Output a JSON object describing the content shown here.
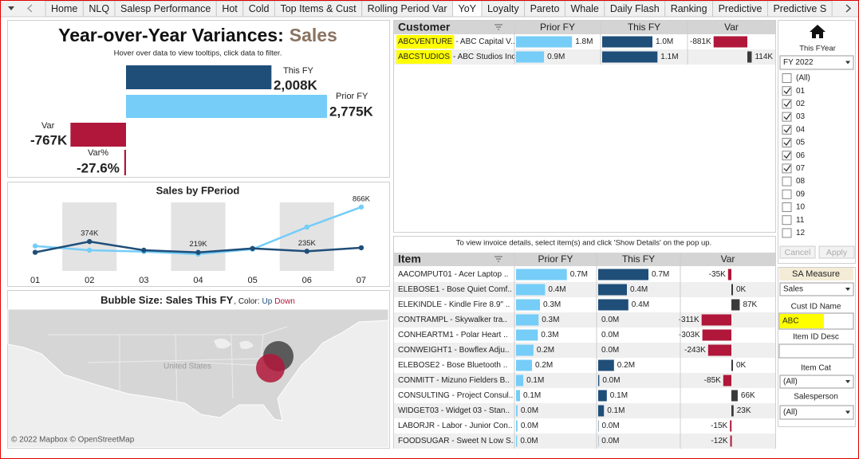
{
  "tabs": {
    "items": [
      "Home",
      "NLQ",
      "Salesp Performance",
      "Hot",
      "Cold",
      "Top Items & Cust",
      "Rolling Period Var",
      "YoY",
      "Loyalty",
      "Pareto",
      "Whale",
      "Daily Flash",
      "Ranking",
      "Predictive",
      "Predictive S"
    ],
    "active": 7
  },
  "kpi": {
    "title": "Year-over-Year Variances:",
    "title_accent": "Sales",
    "subtitle": "Hover over data to view tooltips, click data to filter.",
    "measures": [
      {
        "name": "This FY",
        "value": 2008,
        "value_label": "2,008K",
        "color": "#1f4e79"
      },
      {
        "name": "Prior FY",
        "value": 2775,
        "value_label": "2,775K",
        "color": "#75cdf8"
      },
      {
        "name": "Var",
        "value": -767,
        "value_label": "-767K",
        "color": "#b0173a"
      },
      {
        "name": "Var%",
        "value": -27.6,
        "value_label": "-27.6%",
        "color": "#b0173a"
      }
    ]
  },
  "chart_data": {
    "type": "line",
    "title": "Sales by FPeriod",
    "categories": [
      "01",
      "02",
      "03",
      "04",
      "05",
      "06",
      "07"
    ],
    "ylim": [
      0,
      950
    ],
    "band_shading": true,
    "series": [
      {
        "color": "#75cdf8",
        "values": [
          310,
          250,
          230,
          195,
          265,
          580,
          866
        ],
        "value_labels": [
          null,
          null,
          null,
          null,
          null,
          null,
          "866K"
        ]
      },
      {
        "color": "#1f4e79",
        "values": [
          220,
          374,
          250,
          219,
          275,
          235,
          285
        ],
        "value_labels": [
          null,
          "374K",
          null,
          "219K",
          null,
          "235K",
          null
        ]
      }
    ]
  },
  "map": {
    "title": "Bubble Size: Sales This FY",
    "color_caption": ", Color:",
    "color_up": "Up",
    "color_down": "Down",
    "place_label": "United States",
    "attribution": "© 2022 Mapbox © OpenStreetMap"
  },
  "customer_table": {
    "columns": [
      "Customer",
      "Prior FY",
      "This FY",
      "Var"
    ],
    "rows": [
      {
        "code": "ABCVENTURE",
        "name": "- ABC Capital V..",
        "prior": 1800,
        "prior_label": "1.8M",
        "this": 1000,
        "this_label": "1.0M",
        "var": -881,
        "var_label": "-881K"
      },
      {
        "code": "ABCSTUDIOS",
        "name": "- ABC Studios Inc",
        "prior": 900,
        "prior_label": "0.9M",
        "this": 1100,
        "this_label": "1.1M",
        "var": 114,
        "var_label": "114K"
      }
    ]
  },
  "item_table": {
    "note": "To view invoice details, select item(s) and click 'Show Details' on the pop up.",
    "columns": [
      "Item",
      "Prior FY",
      "This FY",
      "Var"
    ],
    "rows": [
      {
        "item": "AACOMPUT01 - Acer Laptop ..",
        "prior": 700,
        "prior_label": "0.7M",
        "this": 700,
        "this_label": "0.7M",
        "var": -35,
        "var_label": "-35K"
      },
      {
        "item": "ELEBOSE1 - Bose Quiet Comf..",
        "prior": 400,
        "prior_label": "0.4M",
        "this": 400,
        "this_label": "0.4M",
        "var": 0,
        "var_label": "0K"
      },
      {
        "item": "ELEKINDLE - Kindle Fire 8.9\" ..",
        "prior": 330,
        "prior_label": "0.3M",
        "this": 420,
        "this_label": "0.4M",
        "var": 87,
        "var_label": "87K"
      },
      {
        "item": "CONTRAMPL - Skywalker tra..",
        "prior": 310,
        "prior_label": "0.3M",
        "this": 0,
        "this_label": "0.0M",
        "var": -311,
        "var_label": "-311K"
      },
      {
        "item": "CONHEARTM1 - Polar Heart ..",
        "prior": 300,
        "prior_label": "0.3M",
        "this": 0,
        "this_label": "0.0M",
        "var": -303,
        "var_label": "-303K"
      },
      {
        "item": "CONWEIGHT1 - Bowflex Adju..",
        "prior": 240,
        "prior_label": "0.2M",
        "this": 0,
        "this_label": "0.0M",
        "var": -243,
        "var_label": "-243K"
      },
      {
        "item": "ELEBOSE2 - Bose Bluetooth ..",
        "prior": 220,
        "prior_label": "0.2M",
        "this": 220,
        "this_label": "0.2M",
        "var": 0,
        "var_label": "0K"
      },
      {
        "item": "CONMITT - Mizuno Fielders B..",
        "prior": 100,
        "prior_label": "0.1M",
        "this": 15,
        "this_label": "0.0M",
        "var": -85,
        "var_label": "-85K"
      },
      {
        "item": "CONSULTING - Project Consul..",
        "prior": 55,
        "prior_label": "0.1M",
        "this": 120,
        "this_label": "0.1M",
        "var": 66,
        "var_label": "66K"
      },
      {
        "item": "WIDGET03 - Widget 03 - Stan..",
        "prior": 20,
        "prior_label": "0.0M",
        "this": 80,
        "this_label": "0.1M",
        "var": 23,
        "var_label": "23K"
      },
      {
        "item": "LABORJR - Labor - Junior Con..",
        "prior": 20,
        "prior_label": "0.0M",
        "this": 5,
        "this_label": "0.0M",
        "var": -15,
        "var_label": "-15K"
      },
      {
        "item": "FOODSUGAR - Sweet N Low S..",
        "prior": 15,
        "prior_label": "0.0M",
        "this": 3,
        "this_label": "0.0M",
        "var": -12,
        "var_label": "-12K"
      }
    ]
  },
  "filters": {
    "fyear_label": "This FYear",
    "fyear_value": "FY 2022",
    "periods": [
      {
        "label": "(All)",
        "checked": false
      },
      {
        "label": "01",
        "checked": true
      },
      {
        "label": "02",
        "checked": true
      },
      {
        "label": "03",
        "checked": true
      },
      {
        "label": "04",
        "checked": true
      },
      {
        "label": "05",
        "checked": true
      },
      {
        "label": "06",
        "checked": true
      },
      {
        "label": "07",
        "checked": true
      },
      {
        "label": "08",
        "checked": false
      },
      {
        "label": "09",
        "checked": false
      },
      {
        "label": "10",
        "checked": false
      },
      {
        "label": "11",
        "checked": false
      },
      {
        "label": "12",
        "checked": false
      }
    ],
    "cancel": "Cancel",
    "apply": "Apply",
    "sa_measure_label": "SA Measure",
    "sa_measure_value": "Sales",
    "cust_id_label": "Cust ID Name",
    "cust_id_value": "ABC",
    "item_id_label": "Item ID Desc",
    "item_cat_label": "Item Cat",
    "item_cat_value": "(All)",
    "salesperson_label": "Salesperson",
    "salesperson_value": "(All)"
  }
}
